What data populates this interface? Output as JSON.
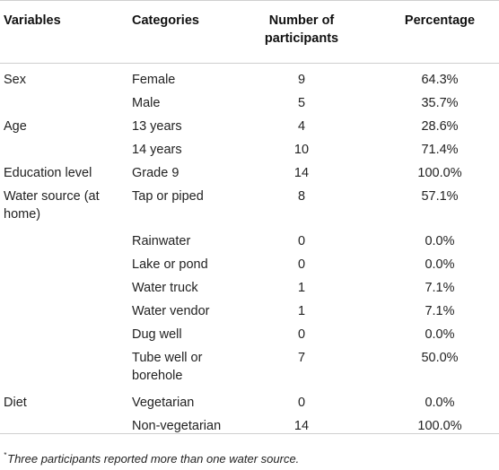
{
  "table": {
    "headers": {
      "variables": "Variables",
      "categories": "Categories",
      "number_line1": "Number of",
      "number_line2": "participants",
      "percentage": "Percentage"
    },
    "rows": [
      {
        "variable": "Sex",
        "variable_line2": "",
        "category": "Female",
        "category_line2": "",
        "number": "9",
        "percentage": "64.3%"
      },
      {
        "variable": "",
        "variable_line2": "",
        "category": "Male",
        "category_line2": "",
        "number": "5",
        "percentage": "35.7%"
      },
      {
        "variable": "Age",
        "variable_line2": "",
        "category": "13 years",
        "category_line2": "",
        "number": "4",
        "percentage": "28.6%"
      },
      {
        "variable": "",
        "variable_line2": "",
        "category": "14 years",
        "category_line2": "",
        "number": "10",
        "percentage": "71.4%"
      },
      {
        "variable": "Education level",
        "variable_line2": "",
        "category": "Grade 9",
        "category_line2": "",
        "number": "14",
        "percentage": "100.0%"
      },
      {
        "variable": "Water source (at",
        "variable_line2": "home)",
        "category": "Tap or piped",
        "category_line2": "",
        "number": "8",
        "percentage": "57.1%"
      },
      {
        "variable": "",
        "variable_line2": "",
        "category": "Rainwater",
        "category_line2": "",
        "number": "0",
        "percentage": "0.0%"
      },
      {
        "variable": "",
        "variable_line2": "",
        "category": "Lake or pond",
        "category_line2": "",
        "number": "0",
        "percentage": "0.0%"
      },
      {
        "variable": "",
        "variable_line2": "",
        "category": "Water truck",
        "category_line2": "",
        "number": "1",
        "percentage": "7.1%"
      },
      {
        "variable": "",
        "variable_line2": "",
        "category": "Water vendor",
        "category_line2": "",
        "number": "1",
        "percentage": "7.1%"
      },
      {
        "variable": "",
        "variable_line2": "",
        "category": "Dug well",
        "category_line2": "",
        "number": "0",
        "percentage": "0.0%"
      },
      {
        "variable": "",
        "variable_line2": "",
        "category": "Tube well or",
        "category_line2": "borehole",
        "number": "7",
        "percentage": "50.0%"
      },
      {
        "variable": "Diet",
        "variable_line2": "",
        "category": "Vegetarian",
        "category_line2": "",
        "number": "0",
        "percentage": "0.0%"
      },
      {
        "variable": "",
        "variable_line2": "",
        "category": "Non-vegetarian",
        "category_line2": "",
        "number": "14",
        "percentage": "100.0%"
      }
    ],
    "footnote": {
      "marker": "*",
      "text": "Three participants reported more than one water source."
    }
  }
}
